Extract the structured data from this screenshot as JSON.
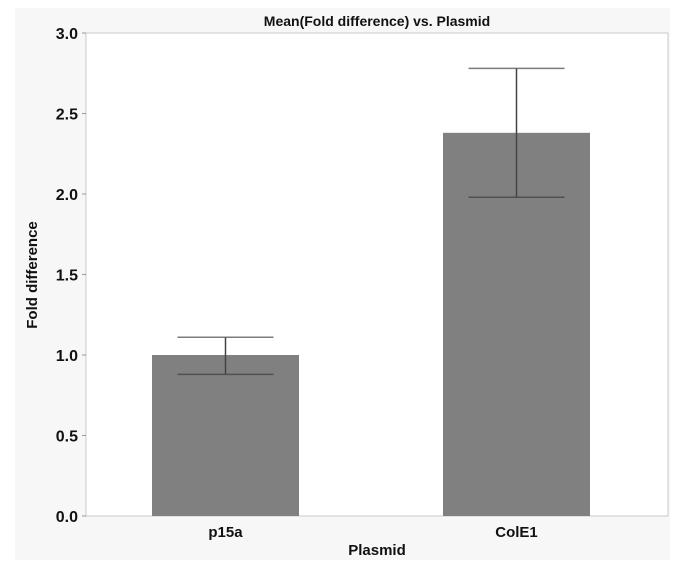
{
  "chart_data": {
    "type": "bar",
    "title": "Mean(Fold difference) vs. Plasmid",
    "xlabel": "Plasmid",
    "ylabel": "Fold difference",
    "categories": [
      "p15a",
      "ColE1"
    ],
    "values": [
      1.0,
      2.38
    ],
    "error_low": [
      0.88,
      1.98
    ],
    "error_high": [
      1.11,
      2.78
    ],
    "ylim": [
      0,
      3.0
    ],
    "yticks": [
      "0.0",
      "0.5",
      "1.0",
      "1.5",
      "2.0",
      "2.5",
      "3.0"
    ],
    "grid": false,
    "colors": {
      "bar": "#808080",
      "error": "#444444",
      "frame_bg": "#f7f7f7",
      "plot_bg": "#ffffff"
    }
  }
}
